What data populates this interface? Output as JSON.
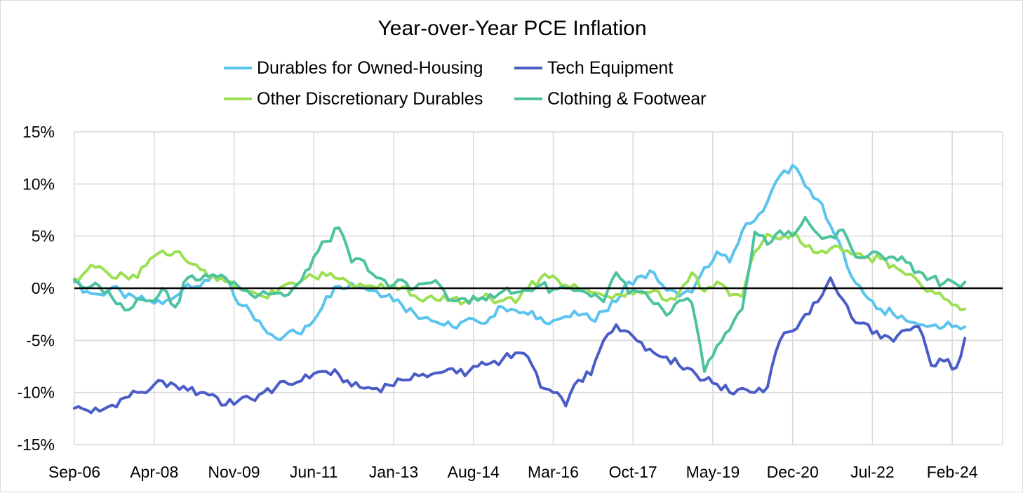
{
  "chart_data": {
    "type": "line",
    "title": "Year-over-Year PCE Inflation",
    "xlabel": "",
    "ylabel": "",
    "ylim": [
      -15,
      15
    ],
    "yticks": [
      -15,
      -10,
      -5,
      0,
      5,
      10,
      15
    ],
    "ytick_labels": [
      "-15%",
      "-10%",
      "-5%",
      "0%",
      "5%",
      "10%",
      "15%"
    ],
    "xlim_months": [
      0,
      221
    ],
    "xtick_labels": [
      "Sep-06",
      "Apr-08",
      "Nov-09",
      "Jun-11",
      "Jan-13",
      "Aug-14",
      "Mar-16",
      "Oct-17",
      "May-19",
      "Dec-20",
      "Jul-22",
      "Feb-24"
    ],
    "xtick_months": [
      0,
      19,
      38,
      57,
      76,
      95,
      114,
      133,
      152,
      171,
      190,
      209
    ],
    "grid": "vertical-and-horizontal",
    "legend_position": "top",
    "series": [
      {
        "name": "Durables for Owned-Housing",
        "color": "#5bc4ee",
        "x": [
          0,
          3,
          6,
          9,
          12,
          15,
          18,
          21,
          24,
          27,
          30,
          33,
          36,
          39,
          42,
          45,
          48,
          51,
          54,
          57,
          60,
          63,
          66,
          69,
          72,
          75,
          78,
          81,
          84,
          87,
          90,
          93,
          96,
          99,
          102,
          105,
          108,
          111,
          114,
          117,
          120,
          123,
          126,
          129,
          132,
          135,
          138,
          141,
          144,
          147,
          150,
          153,
          156,
          159,
          162,
          165,
          168,
          171,
          174,
          177,
          180,
          183,
          186,
          189,
          192,
          195,
          198,
          201,
          204,
          207,
          210,
          212
        ],
        "values": [
          0.6,
          -0.3,
          -0.6,
          0.1,
          -0.9,
          -1.1,
          -1.2,
          -1.5,
          -0.8,
          0.4,
          0.2,
          1.3,
          0.9,
          -1.5,
          -2.3,
          -3.8,
          -4.8,
          -4.2,
          -4.4,
          -3.1,
          -0.8,
          0.2,
          0.5,
          0.0,
          -0.3,
          -0.6,
          -1.6,
          -2.4,
          -2.8,
          -3.4,
          -3.7,
          -3.1,
          -3.2,
          -2.8,
          -1.8,
          -2.1,
          -2.5,
          -2.8,
          -3.1,
          -2.7,
          -2.6,
          -3.0,
          -2.2,
          -1.3,
          0.6,
          1.2,
          1.5,
          -0.2,
          -0.8,
          -0.4,
          2.0,
          3.5,
          2.5,
          5.5,
          6.5,
          8.3,
          10.8,
          11.8,
          9.8,
          8.5,
          6.0,
          3.5,
          0.5,
          -1.0,
          -2.0,
          -2.5,
          -3.1,
          -3.5,
          -3.6,
          -3.7,
          -3.6,
          -3.7
        ]
      },
      {
        "name": "Tech Equipment",
        "color": "#4a5cc6",
        "x": [
          0,
          3,
          6,
          9,
          12,
          15,
          18,
          21,
          24,
          27,
          30,
          33,
          36,
          39,
          42,
          45,
          48,
          51,
          54,
          57,
          60,
          63,
          66,
          69,
          72,
          75,
          78,
          81,
          84,
          87,
          90,
          93,
          96,
          99,
          102,
          105,
          108,
          111,
          114,
          117,
          120,
          123,
          126,
          129,
          132,
          135,
          138,
          141,
          144,
          147,
          150,
          153,
          156,
          159,
          162,
          165,
          168,
          171,
          174,
          177,
          180,
          183,
          186,
          189,
          192,
          195,
          198,
          201,
          204,
          207,
          210,
          212
        ],
        "values": [
          -11.5,
          -11.7,
          -11.8,
          -11.2,
          -10.5,
          -10.0,
          -9.7,
          -8.9,
          -9.3,
          -9.8,
          -10.0,
          -10.2,
          -11.2,
          -10.8,
          -10.6,
          -10.0,
          -9.5,
          -9.2,
          -8.9,
          -8.2,
          -8.0,
          -8.3,
          -9.4,
          -9.6,
          -9.6,
          -9.3,
          -8.8,
          -8.2,
          -8.5,
          -8.1,
          -7.7,
          -8.4,
          -7.5,
          -7.2,
          -6.8,
          -6.2,
          -6.6,
          -9.5,
          -10.0,
          -11.3,
          -8.8,
          -8.3,
          -5.0,
          -3.5,
          -4.2,
          -5.2,
          -6.2,
          -6.6,
          -7.4,
          -7.8,
          -8.8,
          -9.2,
          -10.0,
          -9.6,
          -10.0,
          -9.5,
          -5.0,
          -4.1,
          -2.5,
          -1.3,
          1.0,
          -1.1,
          -3.3,
          -3.5,
          -4.8,
          -5.1,
          -4.0,
          -3.7,
          -7.4,
          -7.0,
          -7.6,
          -4.8
        ]
      },
      {
        "name": "Other Discretionary Durables",
        "color": "#9be052",
        "x": [
          0,
          3,
          6,
          9,
          12,
          15,
          18,
          21,
          24,
          27,
          30,
          33,
          36,
          39,
          42,
          45,
          48,
          51,
          54,
          57,
          60,
          63,
          66,
          69,
          72,
          75,
          78,
          81,
          84,
          87,
          90,
          93,
          96,
          99,
          102,
          105,
          108,
          111,
          114,
          117,
          120,
          123,
          126,
          129,
          132,
          135,
          138,
          141,
          144,
          147,
          150,
          153,
          156,
          159,
          162,
          165,
          168,
          171,
          174,
          177,
          180,
          183,
          186,
          189,
          192,
          195,
          198,
          201,
          204,
          207,
          210,
          212
        ],
        "values": [
          0.9,
          1.7,
          2.1,
          1.0,
          1.2,
          1.0,
          2.8,
          3.6,
          3.5,
          2.5,
          1.8,
          1.2,
          0.6,
          0.0,
          -0.3,
          -0.8,
          -0.5,
          0.5,
          0.7,
          1.1,
          1.2,
          0.9,
          0.3,
          0.2,
          0.0,
          0.2,
          0.1,
          -0.7,
          -0.9,
          -1.2,
          -1.0,
          -1.3,
          -1.0,
          -0.9,
          -1.2,
          -1.4,
          0.0,
          1.0,
          1.2,
          0.3,
          0.0,
          -0.4,
          -0.7,
          -0.6,
          -0.3,
          -0.5,
          -0.2,
          -1.2,
          -0.4,
          1.5,
          -0.3,
          0.6,
          -0.7,
          -0.8,
          3.5,
          5.2,
          4.7,
          5.3,
          4.0,
          3.4,
          3.8,
          3.5,
          3.3,
          3.0,
          2.8,
          2.2,
          1.3,
          0.6,
          -0.2,
          -1.0,
          -1.6,
          -2.0
        ]
      },
      {
        "name": "Clothing & Footwear",
        "color": "#4dc2a0",
        "x": [
          0,
          3,
          6,
          9,
          12,
          15,
          18,
          21,
          24,
          27,
          30,
          33,
          36,
          39,
          42,
          45,
          48,
          51,
          54,
          57,
          60,
          63,
          66,
          69,
          72,
          75,
          78,
          81,
          84,
          87,
          90,
          93,
          96,
          99,
          102,
          105,
          108,
          111,
          114,
          117,
          120,
          123,
          126,
          129,
          132,
          135,
          138,
          141,
          144,
          147,
          150,
          153,
          156,
          159,
          162,
          165,
          168,
          171,
          174,
          177,
          180,
          183,
          186,
          189,
          192,
          195,
          198,
          201,
          204,
          207,
          210,
          212
        ],
        "values": [
          0.8,
          0.0,
          0.2,
          -0.9,
          -2.1,
          -1.0,
          -1.2,
          0.0,
          -1.8,
          1.0,
          0.8,
          1.3,
          1.0,
          0.2,
          -0.6,
          -0.3,
          -0.5,
          -0.6,
          0.7,
          3.0,
          4.5,
          5.8,
          2.5,
          2.6,
          1.0,
          0.0,
          0.8,
          0.0,
          0.5,
          0.3,
          -1.2,
          -1.0,
          -1.2,
          -0.6,
          -0.3,
          -0.4,
          -0.2,
          0.3,
          -0.1,
          0.0,
          -0.2,
          -0.8,
          -1.3,
          1.5,
          -0.5,
          -0.3,
          -1.5,
          -2.6,
          -1.2,
          -1.4,
          -8.0,
          -5.5,
          -4.0,
          -2.0,
          5.4,
          4.2,
          5.5,
          5.0,
          6.8,
          5.2,
          5.0,
          5.6,
          3.0,
          3.1,
          3.2,
          3.0,
          2.5,
          1.6,
          1.0,
          0.5,
          0.4,
          0.6
        ]
      }
    ]
  }
}
